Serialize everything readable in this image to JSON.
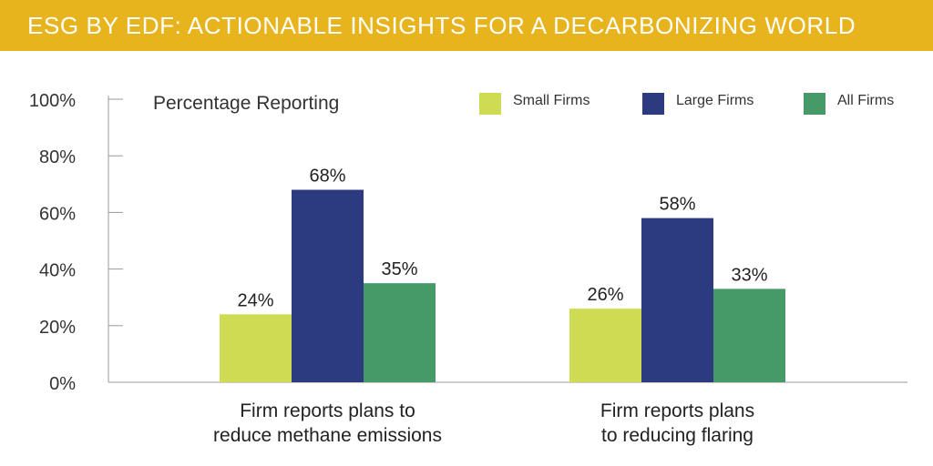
{
  "banner": {
    "title": "ESG BY EDF: ACTIONABLE INSIGHTS FOR A DECARBONIZING WORLD",
    "color": "#e8b41e"
  },
  "chart_data": {
    "type": "bar",
    "title": "",
    "ylabel": "Percentage Reporting",
    "xlabel": "",
    "ylim": [
      0,
      100
    ],
    "yticks": [
      "0%",
      "20%",
      "40%",
      "60%",
      "80%",
      "100%"
    ],
    "grid": false,
    "legend_position": "top-right",
    "categories": [
      [
        "Firm reports plans to",
        "reduce methane emissions"
      ],
      [
        "Firm reports plans",
        "to reducing flaring"
      ]
    ],
    "series": [
      {
        "name": "Small Firms",
        "color": "#cddc52",
        "values": [
          24,
          26
        ],
        "labels": [
          "24%",
          "26%"
        ]
      },
      {
        "name": "Large Firms",
        "color": "#2c3a80",
        "values": [
          68,
          58
        ],
        "labels": [
          "68%",
          "58%"
        ]
      },
      {
        "name": "All Firms",
        "color": "#459a67",
        "values": [
          35,
          33
        ],
        "labels": [
          "35%",
          "33%"
        ]
      }
    ]
  }
}
